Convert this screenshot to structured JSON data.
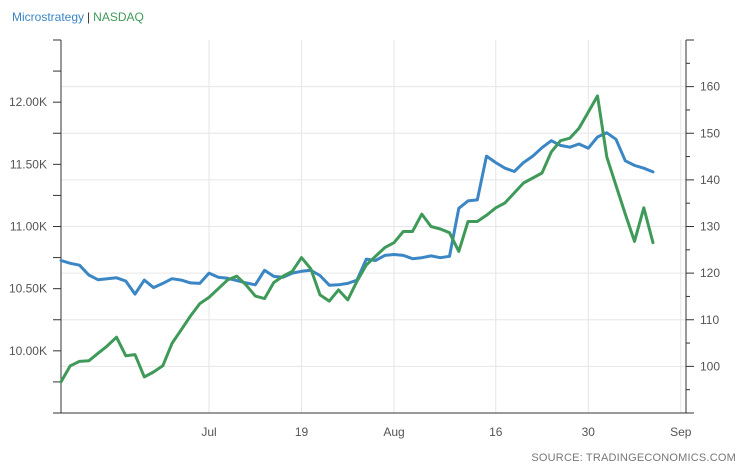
{
  "colors": {
    "microstrategy": "#3b86c4",
    "nasdaq": "#3f9a5a",
    "grid": "#e6e6e6",
    "axis": "#333333"
  },
  "legend": {
    "items": [
      {
        "label": "Microstrategy",
        "color": "#3b86c4"
      },
      {
        "label": "NASDAQ",
        "color": "#3f9a5a"
      }
    ],
    "separator": "|"
  },
  "source": "SOURCE: TRADINGECONOMICS.COM",
  "chart_data": {
    "type": "line",
    "title": "",
    "legend_position": "top-left",
    "grid": true,
    "x_range": [
      0,
      64
    ],
    "x_ticks": [
      {
        "x": 16,
        "label": "Jul"
      },
      {
        "x": 26,
        "label": "19"
      },
      {
        "x": 36,
        "label": "Aug"
      },
      {
        "x": 47,
        "label": "16"
      },
      {
        "x": 57,
        "label": "30"
      },
      {
        "x": 67,
        "label": "Sep"
      }
    ],
    "left_axis": {
      "ylim": [
        9500,
        12500
      ],
      "ticks": [
        {
          "value": 10000,
          "label": "10.00K"
        },
        {
          "value": 10500,
          "label": "10.50K"
        },
        {
          "value": 11000,
          "label": "11.00K"
        },
        {
          "value": 11500,
          "label": "11.50K"
        },
        {
          "value": 12000,
          "label": "12.00K"
        }
      ]
    },
    "right_axis": {
      "ylim": [
        90,
        170
      ],
      "ticks": [
        {
          "value": 100,
          "label": "100"
        },
        {
          "value": 110,
          "label": "110"
        },
        {
          "value": 120,
          "label": "120"
        },
        {
          "value": 130,
          "label": "130"
        },
        {
          "value": 140,
          "label": "140"
        },
        {
          "value": 150,
          "label": "150"
        },
        {
          "value": 160,
          "label": "160"
        }
      ]
    },
    "series": [
      {
        "name": "Microstrategy",
        "axis": "right",
        "x": [
          0,
          1,
          2,
          3,
          4,
          5,
          6,
          7,
          8,
          9,
          10,
          11,
          12,
          13,
          14,
          15,
          16,
          17,
          18,
          19,
          20,
          21,
          22,
          23,
          24,
          25,
          26,
          27,
          28,
          29,
          30,
          31,
          32,
          33,
          34,
          35,
          36,
          37,
          38,
          39,
          40,
          41,
          42,
          43,
          44,
          45,
          46,
          47,
          48,
          49,
          50,
          51,
          52,
          53,
          54,
          55,
          56,
          57,
          58,
          59,
          60,
          61,
          62,
          63,
          64
        ],
        "values": [
          122.7,
          122.1,
          121.7,
          119.6,
          118.6,
          118.8,
          119.0,
          118.3,
          115.5,
          118.5,
          116.9,
          117.8,
          118.8,
          118.5,
          117.9,
          117.8,
          120.0,
          119.1,
          118.9,
          118.4,
          117.9,
          117.5,
          120.6,
          119.3,
          119.1,
          120.0,
          120.4,
          120.6,
          119.5,
          117.4,
          117.5,
          117.8,
          118.5,
          123.0,
          122.7,
          123.8,
          124.0,
          123.8,
          123.1,
          123.3,
          123.7,
          123.3,
          123.6,
          133.9,
          135.5,
          135.7,
          145.1,
          143.7,
          142.5,
          141.8,
          143.7,
          145.1,
          146.9,
          148.4,
          147.4,
          147.0,
          147.7,
          146.8,
          149.2,
          150.1,
          148.7,
          144.1,
          143.1,
          142.5,
          141.7
        ]
      },
      {
        "name": "NASDAQ",
        "axis": "left",
        "x": [
          0,
          1,
          2,
          3,
          4,
          5,
          6,
          7,
          8,
          9,
          10,
          11,
          12,
          13,
          14,
          15,
          16,
          17,
          18,
          19,
          20,
          21,
          22,
          23,
          24,
          25,
          26,
          27,
          28,
          29,
          30,
          31,
          32,
          33,
          34,
          35,
          36,
          37,
          38,
          39,
          40,
          41,
          42,
          43,
          44,
          45,
          46,
          47,
          48,
          49,
          50,
          51,
          52,
          53,
          54,
          55,
          56,
          57,
          58,
          59,
          60,
          61,
          62,
          63,
          64
        ],
        "values": [
          9750,
          9880,
          9915,
          9920,
          9980,
          10040,
          10110,
          9960,
          9970,
          9790,
          9830,
          9880,
          10060,
          10170,
          10280,
          10380,
          10430,
          10500,
          10570,
          10600,
          10530,
          10440,
          10420,
          10550,
          10600,
          10640,
          10750,
          10660,
          10450,
          10400,
          10490,
          10410,
          10560,
          10690,
          10760,
          10830,
          10870,
          10960,
          10960,
          11100,
          11000,
          10980,
          10950,
          10800,
          11040,
          11040,
          11090,
          11150,
          11190,
          11270,
          11350,
          11390,
          11430,
          11600,
          11690,
          11710,
          11790,
          11920,
          12050,
          11560,
          11330,
          11100,
          10880,
          11150,
          10870
        ]
      }
    ]
  }
}
